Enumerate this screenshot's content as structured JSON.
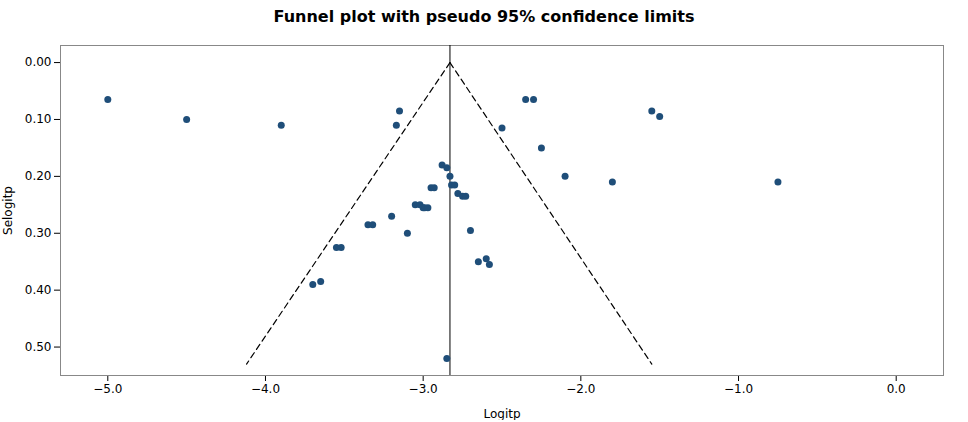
{
  "chart_data": {
    "type": "scatter",
    "title": "Funnel plot with pseudo 95% confidence limits",
    "xlabel": "Logitp",
    "ylabel": "Selogitp",
    "xlim": [
      -5.3,
      0.3
    ],
    "ylim": [
      0.55,
      -0.03
    ],
    "xticks": [
      -5,
      -4,
      -3,
      -2,
      -1,
      0
    ],
    "yticks": [
      0,
      0.1,
      0.2,
      0.3,
      0.4,
      0.5
    ],
    "color": "#1F4E79",
    "marker": "circle",
    "vertical_line_x": -2.83,
    "funnel": {
      "apex_x": -2.83,
      "apex_y": 0.0,
      "base_y": 0.53,
      "left_x": -4.12,
      "right_x": -1.55,
      "line_style": "dashed"
    },
    "x": [
      -5.0,
      -4.5,
      -3.9,
      -3.7,
      -3.65,
      -3.55,
      -3.52,
      -3.35,
      -3.32,
      -3.2,
      -3.1,
      -3.05,
      -3.02,
      -3.0,
      -2.99,
      -2.97,
      -2.95,
      -2.93,
      -2.88,
      -2.85,
      -2.83,
      -2.82,
      -2.8,
      -2.78,
      -2.75,
      -2.73,
      -2.7,
      -2.65,
      -2.6,
      -2.58,
      -3.15,
      -3.17,
      -2.5,
      -2.85,
      -2.35,
      -2.3,
      -2.25,
      -2.1,
      -1.8,
      -1.55,
      -1.5,
      -0.75
    ],
    "values": [
      0.065,
      0.1,
      0.11,
      0.39,
      0.385,
      0.325,
      0.325,
      0.285,
      0.285,
      0.27,
      0.3,
      0.25,
      0.25,
      0.255,
      0.255,
      0.255,
      0.22,
      0.22,
      0.18,
      0.185,
      0.2,
      0.215,
      0.215,
      0.23,
      0.235,
      0.235,
      0.295,
      0.35,
      0.345,
      0.355,
      0.085,
      0.11,
      0.115,
      0.52,
      0.065,
      0.065,
      0.15,
      0.2,
      0.21,
      0.085,
      0.095,
      0.21
    ]
  }
}
